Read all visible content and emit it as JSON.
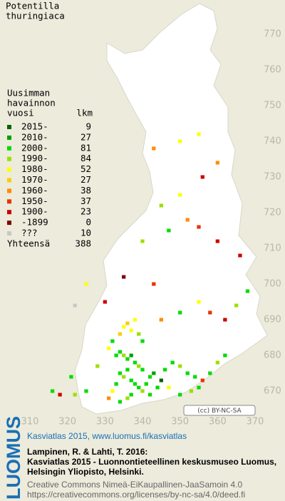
{
  "map": {
    "title": [
      "Potentilla",
      "thuringiaca"
    ],
    "legend": {
      "header": [
        "Uusimman",
        "havainnon",
        "vuosi",
        "lkm"
      ],
      "rows": [
        {
          "label": "2015-",
          "count": 9,
          "color": "#006400"
        },
        {
          "label": "2010-",
          "count": 27,
          "color": "#00a000"
        },
        {
          "label": "2000-",
          "count": 81,
          "color": "#00dc00"
        },
        {
          "label": "1990-",
          "count": 84,
          "color": "#9be000"
        },
        {
          "label": "1980-",
          "count": 52,
          "color": "#ffff00"
        },
        {
          "label": "1970-",
          "count": 27,
          "color": "#ffcc00"
        },
        {
          "label": "1960-",
          "count": 38,
          "color": "#ff8c00"
        },
        {
          "label": "1950-",
          "count": 37,
          "color": "#e83200"
        },
        {
          "label": "1900-",
          "count": 23,
          "color": "#cc0000"
        },
        {
          "label": "-1899",
          "count": 0,
          "color": "#800000"
        },
        {
          "label": "???",
          "count": 10,
          "color": "#c8c8c8"
        }
      ],
      "total_label": "Yhteensä",
      "total": 388
    },
    "xticks": [
      310,
      320,
      330,
      340,
      350,
      360,
      370
    ],
    "yticks": [
      770,
      760,
      750,
      740,
      730,
      720,
      710,
      700,
      690,
      680,
      670
    ],
    "squares": [
      [
        333,
        680,
        2
      ],
      [
        334,
        681,
        2
      ],
      [
        335,
        680,
        3
      ],
      [
        336,
        679,
        2
      ],
      [
        337,
        680,
        1
      ],
      [
        338,
        678,
        2
      ],
      [
        339,
        677,
        3
      ],
      [
        340,
        676,
        2
      ],
      [
        336,
        676,
        2
      ],
      [
        334,
        675,
        2
      ],
      [
        335,
        674,
        3
      ],
      [
        337,
        673,
        2
      ],
      [
        338,
        672,
        2
      ],
      [
        339,
        671,
        2
      ],
      [
        340,
        670,
        3
      ],
      [
        341,
        672,
        2
      ],
      [
        342,
        674,
        2
      ],
      [
        343,
        675,
        1
      ],
      [
        333,
        672,
        2
      ],
      [
        332,
        670,
        4
      ],
      [
        331,
        668,
        6
      ],
      [
        334,
        667,
        2
      ],
      [
        336,
        668,
        3
      ],
      [
        337,
        669,
        2
      ],
      [
        342,
        669,
        2
      ],
      [
        344,
        671,
        2
      ],
      [
        345,
        673,
        0
      ],
      [
        346,
        676,
        2
      ],
      [
        348,
        678,
        2
      ],
      [
        350,
        677,
        3
      ],
      [
        352,
        675,
        2
      ],
      [
        354,
        674,
        2
      ],
      [
        356,
        673,
        7
      ],
      [
        358,
        675,
        2
      ],
      [
        360,
        678,
        3
      ],
      [
        362,
        680,
        2
      ],
      [
        355,
        671,
        2
      ],
      [
        353,
        670,
        3
      ],
      [
        350,
        669,
        2
      ],
      [
        347,
        671,
        4
      ],
      [
        325,
        670,
        2
      ],
      [
        322,
        669,
        3
      ],
      [
        318,
        669,
        8
      ],
      [
        316,
        670,
        2
      ],
      [
        321,
        674,
        2
      ],
      [
        328,
        677,
        3
      ],
      [
        335,
        688,
        4
      ],
      [
        336,
        689,
        5
      ],
      [
        337,
        687,
        4
      ],
      [
        338,
        690,
        4
      ],
      [
        334,
        686,
        5
      ],
      [
        339,
        686,
        3
      ],
      [
        340,
        684,
        2
      ],
      [
        332,
        684,
        2
      ],
      [
        331,
        682,
        4
      ],
      [
        345,
        690,
        6
      ],
      [
        350,
        692,
        2
      ],
      [
        355,
        695,
        4
      ],
      [
        358,
        692,
        7
      ],
      [
        362,
        690,
        8
      ],
      [
        365,
        694,
        3
      ],
      [
        368,
        698,
        2
      ],
      [
        330,
        695,
        8
      ],
      [
        325,
        700,
        4
      ],
      [
        343,
        700,
        7
      ],
      [
        340,
        712,
        3
      ],
      [
        347,
        715,
        2
      ],
      [
        352,
        718,
        6
      ],
      [
        355,
        716,
        7
      ],
      [
        360,
        712,
        8
      ],
      [
        366,
        708,
        8
      ],
      [
        345,
        722,
        3
      ],
      [
        350,
        725,
        4
      ],
      [
        356,
        730,
        8
      ],
      [
        360,
        734,
        6
      ],
      [
        350,
        740,
        4
      ],
      [
        355,
        742,
        4
      ],
      [
        343,
        738,
        6
      ],
      [
        335,
        702,
        9
      ],
      [
        322,
        694,
        10
      ]
    ],
    "license_badge": "(cc) BY-NC-SA"
  },
  "footer": {
    "logo": "LUOMUS",
    "headline": "Kasviatlas 2015, www.luomus.fi/kasviatlas",
    "citation": [
      "Lampinen, R. & Lahti, T. 2016:",
      "Kasviatlas 2015 - Luonnontieteellinen keskusmuseo Luomus,",
      "Helsingin Yliopisto, Helsinki."
    ],
    "license": [
      "Creative Commons Nimeä-EiKaupallinen-JaaSamoin 4.0",
      "https://creativecommons.org/licenses/by-nc-sa/4.0/deed.fi"
    ]
  }
}
